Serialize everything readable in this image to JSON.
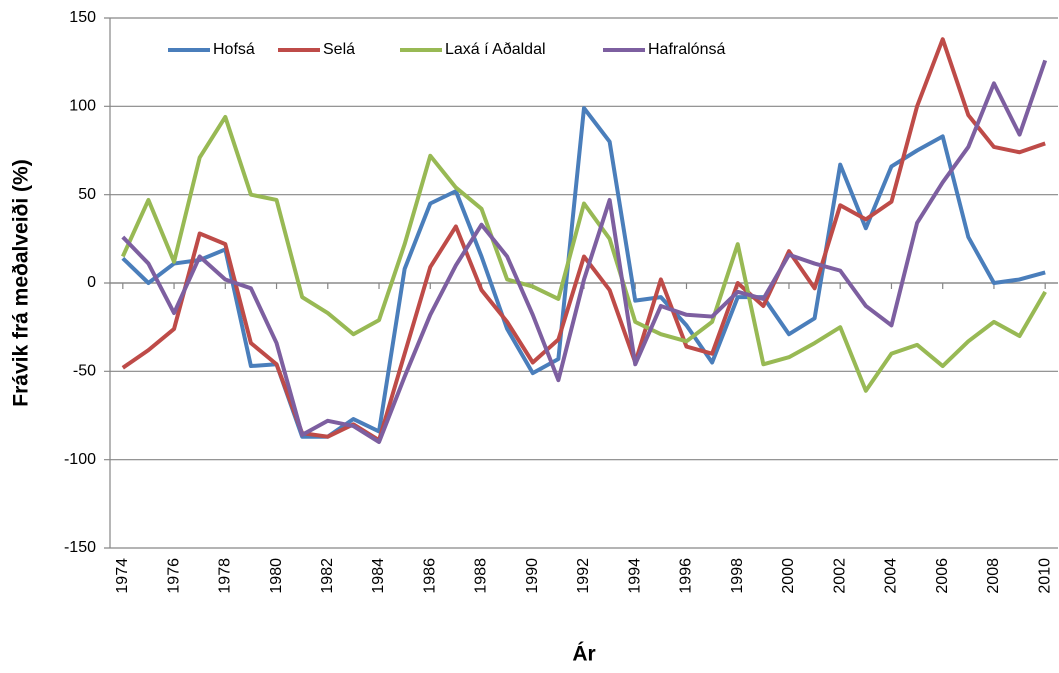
{
  "chart_data": {
    "type": "line",
    "y_label": "Frávik frá meðalveiði (%)",
    "x_label": "Ár",
    "x": [
      1974,
      1975,
      1976,
      1977,
      1978,
      1979,
      1980,
      1981,
      1982,
      1983,
      1984,
      1985,
      1986,
      1987,
      1988,
      1989,
      1990,
      1991,
      1992,
      1993,
      1994,
      1995,
      1996,
      1997,
      1998,
      1999,
      2000,
      2001,
      2002,
      2003,
      2004,
      2005,
      2006,
      2007,
      2008,
      2009,
      2010
    ],
    "xlim": [
      1973.5,
      2010.5
    ],
    "xticks": [
      1974,
      1976,
      1978,
      1980,
      1982,
      1984,
      1986,
      1988,
      1990,
      1992,
      1994,
      1996,
      1998,
      2000,
      2002,
      2004,
      2006,
      2008,
      2010
    ],
    "ylim": [
      -150,
      150
    ],
    "yticks": [
      -150,
      -100,
      -50,
      0,
      50,
      100,
      150
    ],
    "grid": true,
    "legend": "top",
    "series": [
      {
        "name": "Hofsá",
        "color": "#4a7ebb",
        "values": [
          14,
          0,
          11,
          13,
          19,
          -47,
          -46,
          -87,
          -87,
          -77,
          -84,
          8,
          45,
          52,
          15,
          -26,
          -51,
          -43,
          99,
          80,
          -10,
          -8,
          -24,
          -45,
          -8,
          -8,
          -29,
          -20,
          67,
          31,
          66,
          75,
          83,
          26,
          0,
          2,
          6
        ]
      },
      {
        "name": "Selá",
        "color": "#be4b48",
        "values": [
          -48,
          -38,
          -26,
          28,
          22,
          -34,
          -46,
          -85,
          -87,
          -80,
          -89,
          -40,
          9,
          32,
          -4,
          -22,
          -45,
          -32,
          15,
          -4,
          -45,
          2,
          -36,
          -40,
          0,
          -13,
          18,
          -3,
          44,
          36,
          46,
          100,
          138,
          95,
          77,
          74,
          79
        ]
      },
      {
        "name": "Laxá í Aðaldal",
        "color": "#98b954",
        "values": [
          15,
          47,
          12,
          71,
          94,
          50,
          47,
          -8,
          -17,
          -29,
          -21,
          22,
          72,
          54,
          42,
          2,
          -2,
          -9,
          45,
          25,
          -22,
          -29,
          -33,
          -22,
          22,
          -46,
          -42,
          -34,
          -25,
          -61,
          -40,
          -35,
          -47,
          -33,
          -22,
          -30,
          -5
        ]
      },
      {
        "name": "Hafralónsá",
        "color": "#7d5fa0",
        "values": [
          26,
          11,
          -17,
          15,
          2,
          -3,
          -34,
          -86,
          -78,
          -81,
          -90,
          -53,
          -18,
          10,
          33,
          15,
          -18,
          -55,
          2,
          47,
          -46,
          -13,
          -18,
          -19,
          -5,
          -9,
          16,
          11,
          7,
          -13,
          -24,
          34,
          57,
          77,
          113,
          84,
          126
        ]
      }
    ]
  }
}
